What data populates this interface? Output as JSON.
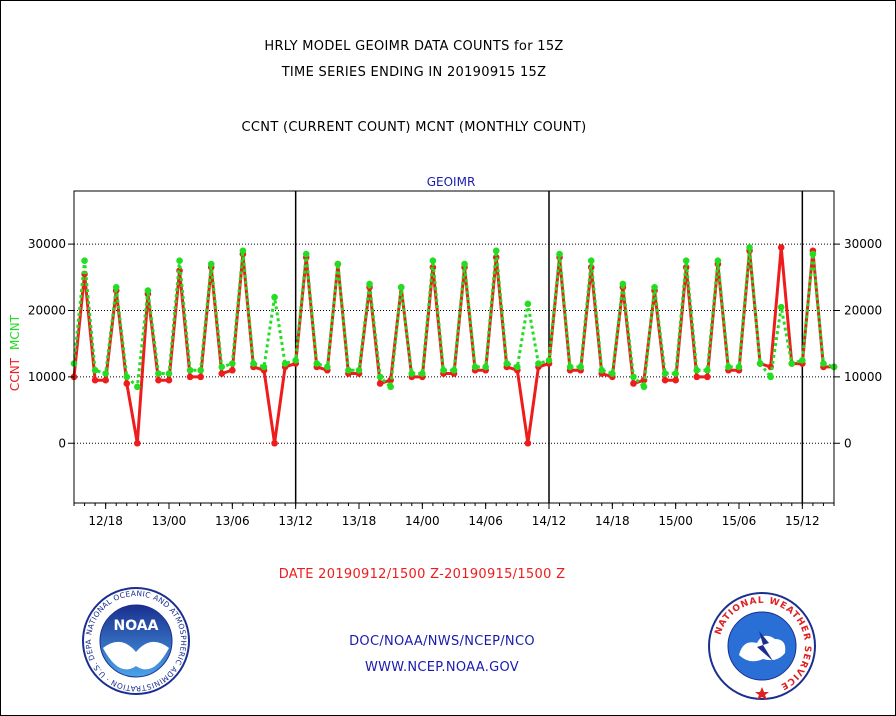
{
  "title_line1": "HRLY MODEL GEOIMR DATA COUNTS for 15Z",
  "title_line2": "TIME SERIES ENDING IN 20190915 15Z",
  "title_line3": "CCNT (CURRENT COUNT) MCNT (MONTHLY COUNT)",
  "date_range": "DATE 20190912/1500 Z-20190915/1500 Z",
  "footer_org": "DOC/NOAA/NWS/NCEP/NCO",
  "footer_url": "WWW.NCEP.NOAA.GOV",
  "noaa_logo": {
    "wordmark": "NOAA",
    "ring": "NATIONAL OCEANIC AND ATMOSPHERIC ADMINISTRATION · U.S. DEPARTMENT OF COMMERCE"
  },
  "nws_logo": {
    "ring": "NATIONAL WEATHER SERVICE"
  },
  "colors": {
    "ccnt": "#ee1c1c",
    "mcnt": "#22dd22",
    "title": "#000000",
    "date": "#ee1c1c",
    "footer": "#1a1ab0",
    "panel": "#1a1ab0"
  },
  "chart_data": {
    "type": "line",
    "panel_title": "GEOIMR",
    "ylabel_parts": [
      {
        "text": "CCNT",
        "color": "#ee1c1c"
      },
      {
        "text": "MCNT",
        "color": "#22dd22"
      }
    ],
    "ylim": [
      -9000,
      38000
    ],
    "yticks": [
      0,
      10000,
      20000,
      30000
    ],
    "grid": "horizontal dotted",
    "x_hours_since_start": [
      0,
      1,
      2,
      3,
      4,
      5,
      6,
      7,
      8,
      9,
      10,
      11,
      12,
      13,
      14,
      15,
      16,
      17,
      18,
      19,
      20,
      21,
      22,
      23,
      24,
      25,
      26,
      27,
      28,
      29,
      30,
      31,
      32,
      33,
      34,
      35,
      36,
      37,
      38,
      39,
      40,
      41,
      42,
      43,
      44,
      45,
      46,
      47,
      48,
      49,
      50,
      51,
      52,
      53,
      54,
      55,
      56,
      57,
      58,
      59,
      60,
      61,
      62,
      63,
      64,
      65,
      66,
      67,
      68,
      69,
      70,
      71,
      72
    ],
    "xlim_hours": [
      0,
      72
    ],
    "x_ticks": [
      {
        "label": "12/18",
        "hour": 3
      },
      {
        "label": "13/00",
        "hour": 9
      },
      {
        "label": "13/06",
        "hour": 15
      },
      {
        "label": "13/12",
        "hour": 21
      },
      {
        "label": "13/18",
        "hour": 27
      },
      {
        "label": "14/00",
        "hour": 33
      },
      {
        "label": "14/06",
        "hour": 39
      },
      {
        "label": "14/12",
        "hour": 45
      },
      {
        "label": "14/18",
        "hour": 51
      },
      {
        "label": "15/00",
        "hour": 57
      },
      {
        "label": "15/06",
        "hour": 63
      },
      {
        "label": "15/12",
        "hour": 69
      }
    ],
    "day_boundaries_hour": [
      21,
      45,
      69
    ],
    "series": [
      {
        "name": "CCNT",
        "color": "#ee1c1c",
        "style": "solid",
        "values": [
          10000,
          25500,
          9500,
          9500,
          23000,
          9000,
          0,
          22500,
          9500,
          9500,
          26000,
          10000,
          10000,
          26500,
          10500,
          11000,
          28500,
          11500,
          11000,
          0,
          11500,
          12000,
          28000,
          11500,
          11000,
          27000,
          10500,
          10500,
          23500,
          9000,
          9500,
          23500,
          10000,
          10000,
          26500,
          10500,
          10500,
          26500,
          11000,
          11000,
          28000,
          11500,
          11000,
          0,
          11500,
          12000,
          28000,
          11000,
          11000,
          26500,
          10500,
          10000,
          23500,
          9000,
          9500,
          23000,
          9500,
          9500,
          26500,
          10000,
          10000,
          27000,
          11000,
          11000,
          29000,
          12000,
          11500,
          29500,
          12000,
          12000,
          29000,
          11500,
          11500
        ]
      },
      {
        "name": "MCNT",
        "color": "#22dd22",
        "style": "dotted",
        "values": [
          12000,
          27500,
          11000,
          10500,
          23500,
          10000,
          8500,
          23000,
          10500,
          10500,
          27500,
          11000,
          11000,
          27000,
          11500,
          12000,
          29000,
          12000,
          11500,
          22000,
          12000,
          12500,
          28500,
          12000,
          11500,
          27000,
          11000,
          11000,
          24000,
          10000,
          8500,
          23500,
          10500,
          10500,
          27500,
          11000,
          11000,
          27000,
          11500,
          11500,
          29000,
          12000,
          11500,
          21000,
          12000,
          12500,
          28500,
          11500,
          11500,
          27500,
          11000,
          10500,
          24000,
          10000,
          8500,
          23500,
          10500,
          10500,
          27500,
          11000,
          11000,
          27500,
          11500,
          11500,
          29500,
          12000,
          10000,
          20500,
          12000,
          12500,
          28500,
          12000,
          11500
        ]
      }
    ]
  }
}
